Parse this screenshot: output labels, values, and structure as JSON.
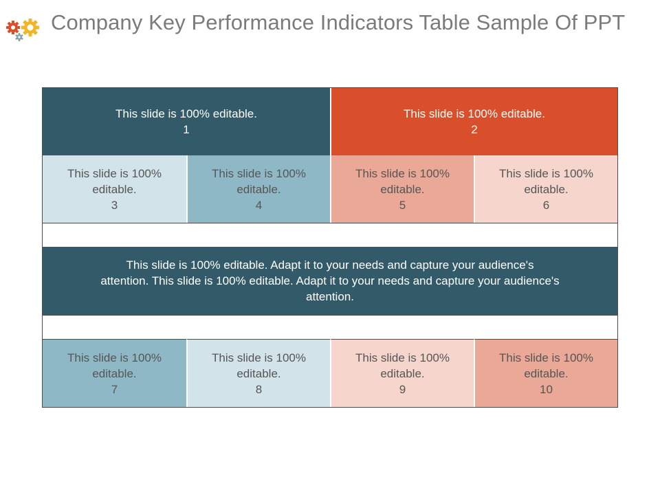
{
  "slide": {
    "title": "Company Key Performance Indicators Table Sample Of PPT",
    "logo_icon": "gears-icon"
  },
  "table": {
    "header": [
      {
        "text": "This slide is 100% editable.",
        "num": "1"
      },
      {
        "text": "This slide is 100% editable.",
        "num": "2"
      }
    ],
    "row1": [
      {
        "line1": "This slide is 100%",
        "line2": "editable.",
        "num": "3"
      },
      {
        "line1": "This slide is 100%",
        "line2": "editable.",
        "num": "4"
      },
      {
        "line1": "This slide is 100%",
        "line2": "editable.",
        "num": "5"
      },
      {
        "line1": "This slide is 100%",
        "line2": "editable.",
        "num": "6"
      }
    ],
    "wide": {
      "line1": "This slide is 100% editable. Adapt it to your needs and capture your audience's",
      "line2": "attention. This slide is 100% editable. Adapt it to your needs and capture your audience's",
      "line3": "attention."
    },
    "row2": [
      {
        "line1": "This slide is 100%",
        "line2": "editable.",
        "num": "7"
      },
      {
        "line1": "This slide is 100%",
        "line2": "editable.",
        "num": "8"
      },
      {
        "line1": "This slide is 100%",
        "line2": "editable.",
        "num": "9"
      },
      {
        "line1": "This slide is 100%",
        "line2": "editable.",
        "num": "10"
      }
    ]
  },
  "colors": {
    "dark_teal": "#335a68",
    "orange": "#d94f2b",
    "light_blue": "#d3e3ea",
    "mid_blue": "#8fb8c7",
    "salmon": "#eaa896",
    "pink": "#f6d6cc"
  }
}
